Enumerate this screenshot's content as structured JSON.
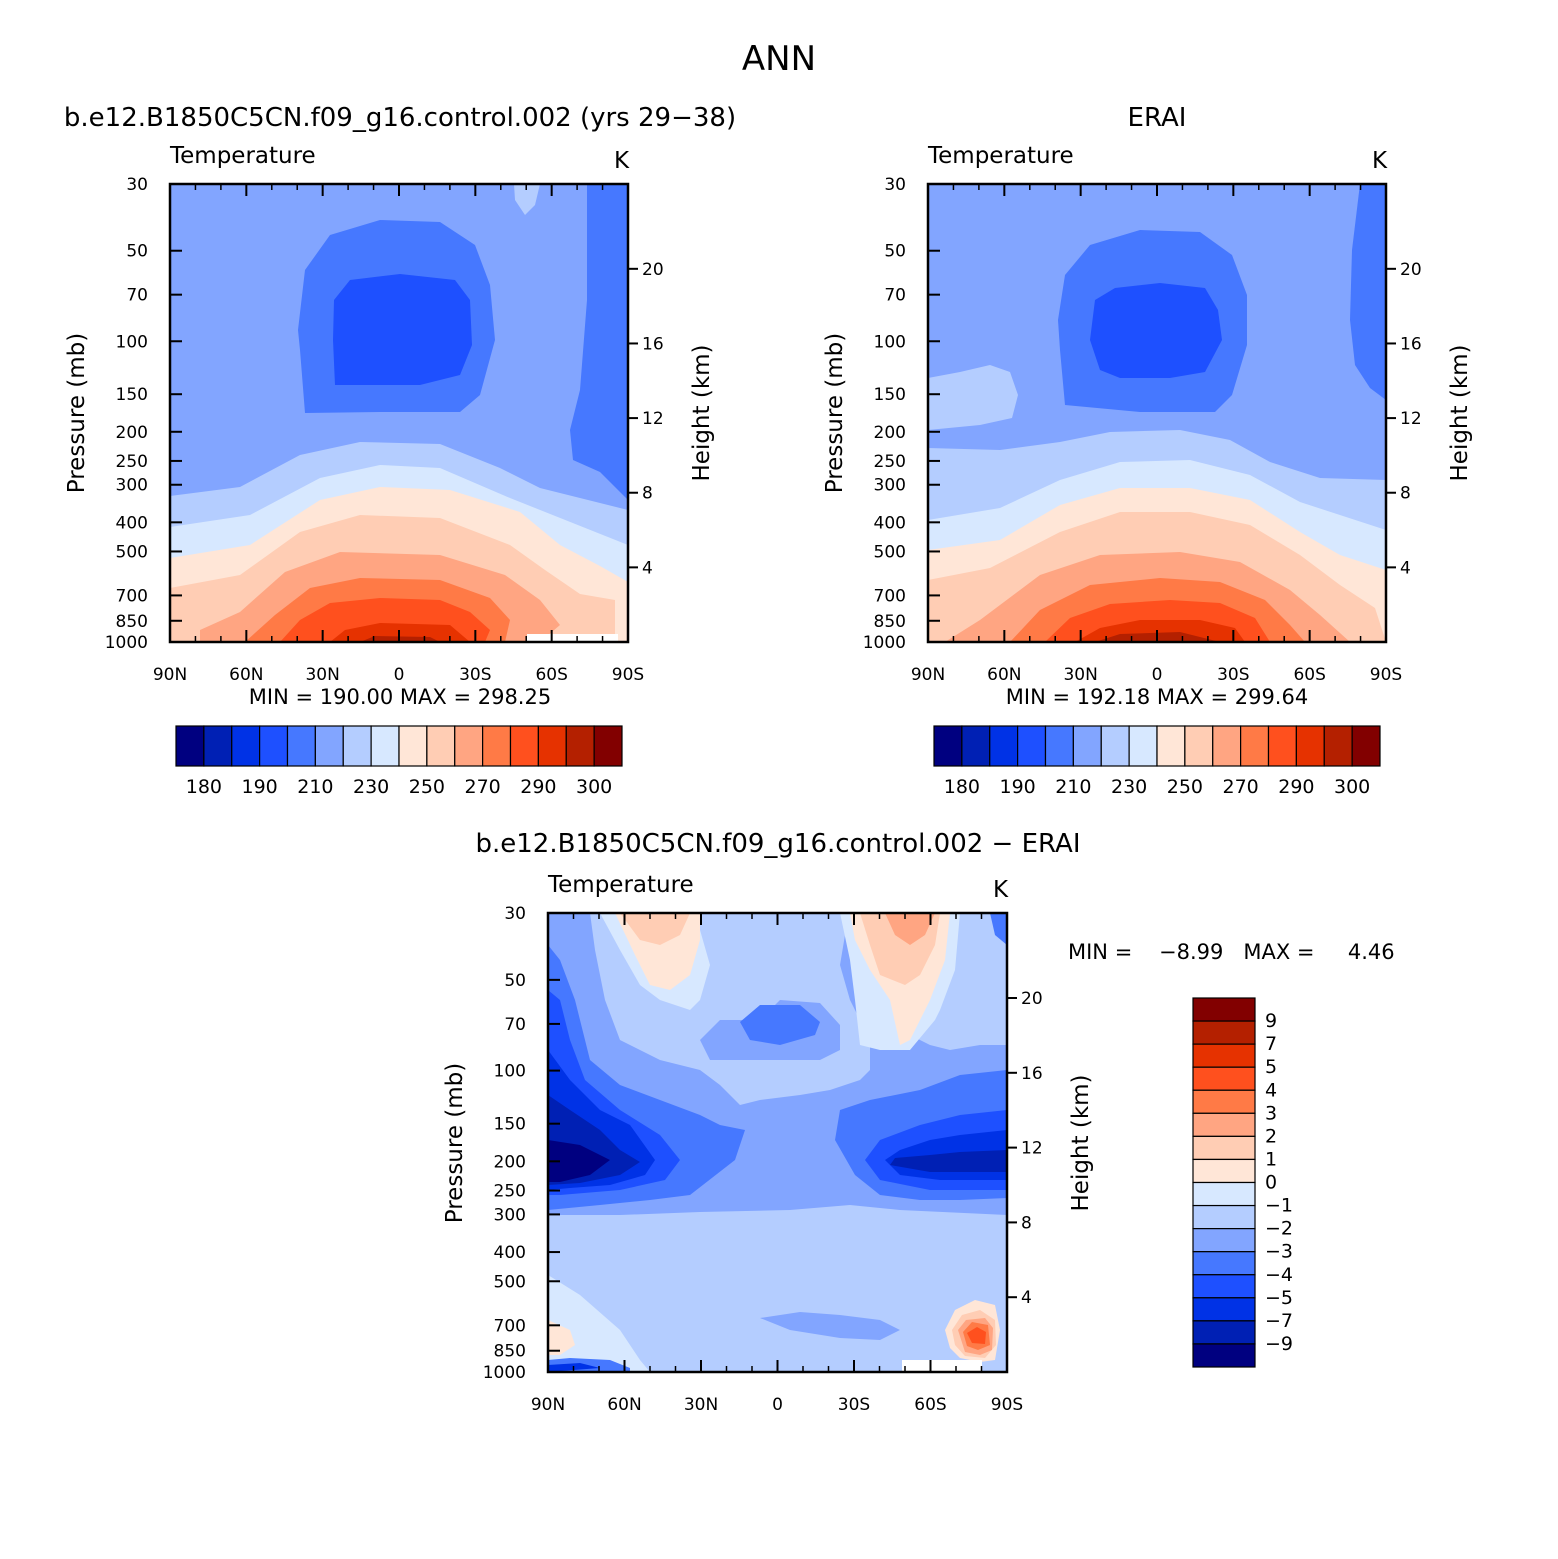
{
  "figure": {
    "title": "ANN",
    "variable": "Temperature",
    "units": "K"
  },
  "panels": [
    {
      "id": "model",
      "title": "b.e12.B1850C5CN.f09_g16.control.002 (yrs 29−38)",
      "variable": "Temperature",
      "units": "K",
      "left_axis_label": "Pressure (mb)",
      "right_axis_label": "Height (km)",
      "stats_text": "MIN = 190.00   MAX = 298.25"
    },
    {
      "id": "obs",
      "title": "ERAI",
      "variable": "Temperature",
      "units": "K",
      "left_axis_label": "Pressure (mb)",
      "right_axis_label": "Height (km)",
      "stats_text": "MIN = 192.18   MAX = 299.64"
    },
    {
      "id": "diff",
      "title": "b.e12.B1850C5CN.f09_g16.control.002 − ERAI",
      "variable": "Temperature",
      "units": "K",
      "left_axis_label": "Pressure (mb)",
      "right_axis_label": "Height (km)",
      "stats_text": "MIN =    −8.99   MAX =     4.46"
    }
  ],
  "colorbar_labels_abs": [
    "180",
    "190",
    "210",
    "230",
    "250",
    "270",
    "290",
    "300"
  ],
  "colorbar_labels_diff": [
    "9",
    "7",
    "5",
    "4",
    "3",
    "2",
    "1",
    "0",
    "−1",
    "−2",
    "−3",
    "−4",
    "−5",
    "−7",
    "−9"
  ],
  "colors": {
    "abs_scale": [
      "#000080",
      "#0020b4",
      "#0032e6",
      "#1e50ff",
      "#4678ff",
      "#82a5ff",
      "#b4cdff",
      "#d7e8ff",
      "#ffe6d7",
      "#ffcdb4",
      "#ffa582",
      "#ff7a46",
      "#ff501e",
      "#e63200",
      "#b42000",
      "#820000"
    ],
    "diff_scale": [
      "#820000",
      "#b42000",
      "#e63200",
      "#ff501e",
      "#ff7a46",
      "#ffa582",
      "#ffcdb4",
      "#ffe6d7",
      "#d7e8ff",
      "#b4cdff",
      "#82a5ff",
      "#4678ff",
      "#1e50ff",
      "#0032e6",
      "#0020b4",
      "#000080"
    ]
  },
  "chart_data": [
    {
      "type": "heatmap",
      "title": "b.e12.B1850C5CN.f09_g16.control.002 (yrs 29−38)",
      "variable": "Temperature",
      "units": "K",
      "x": [
        "90N",
        "60N",
        "30N",
        "0",
        "30S",
        "60S",
        "90S"
      ],
      "y": [
        1000,
        850,
        700,
        500,
        400,
        300,
        250,
        200,
        150,
        100,
        70,
        50,
        30
      ],
      "ylabel": "Pressure (mb)",
      "y2label": "Height (km)",
      "y2_ticks": [
        4,
        8,
        12,
        16,
        20
      ],
      "min": 190.0,
      "max": 298.25,
      "contour_levels": [
        180,
        185,
        190,
        200,
        210,
        220,
        230,
        240,
        250,
        260,
        270,
        280,
        290,
        295,
        300
      ],
      "values_by_level_K": {
        "1000": 296,
        "850": 288,
        "700": 280,
        "500": 262,
        "400": 248,
        "300": 232,
        "250": 222,
        "200": 212,
        "150": 203,
        "100": 192,
        "70": 197,
        "50": 205,
        "30": 212
      }
    },
    {
      "type": "heatmap",
      "title": "ERAI",
      "variable": "Temperature",
      "units": "K",
      "x": [
        "90N",
        "60N",
        "30N",
        "0",
        "30S",
        "60S",
        "90S"
      ],
      "y": [
        1000,
        850,
        700,
        500,
        400,
        300,
        250,
        200,
        150,
        100,
        70,
        50,
        30
      ],
      "ylabel": "Pressure (mb)",
      "y2label": "Height (km)",
      "y2_ticks": [
        4,
        8,
        12,
        16,
        20
      ],
      "min": 192.18,
      "max": 299.64,
      "contour_levels": [
        180,
        185,
        190,
        200,
        210,
        220,
        230,
        240,
        250,
        260,
        270,
        280,
        290,
        295,
        300
      ],
      "values_by_level_K": {
        "1000": 298,
        "850": 290,
        "700": 282,
        "500": 265,
        "400": 252,
        "300": 235,
        "250": 225,
        "200": 215,
        "150": 205,
        "100": 194,
        "70": 198,
        "50": 206,
        "30": 213
      }
    },
    {
      "type": "heatmap",
      "title": "b.e12.B1850C5CN.f09_g16.control.002 − ERAI",
      "variable": "Temperature",
      "units": "K",
      "x": [
        "90N",
        "60N",
        "30N",
        "0",
        "30S",
        "60S",
        "90S"
      ],
      "y": [
        1000,
        850,
        700,
        500,
        400,
        300,
        250,
        200,
        150,
        100,
        70,
        50,
        30
      ],
      "ylabel": "Pressure (mb)",
      "y2label": "Height (km)",
      "y2_ticks": [
        4,
        8,
        12,
        16,
        20
      ],
      "min": -8.99,
      "max": 4.46,
      "contour_levels": [
        -9,
        -7,
        -5,
        -4,
        -3,
        -2,
        -1,
        0,
        1,
        2,
        3,
        4,
        5,
        7,
        9
      ]
    }
  ]
}
